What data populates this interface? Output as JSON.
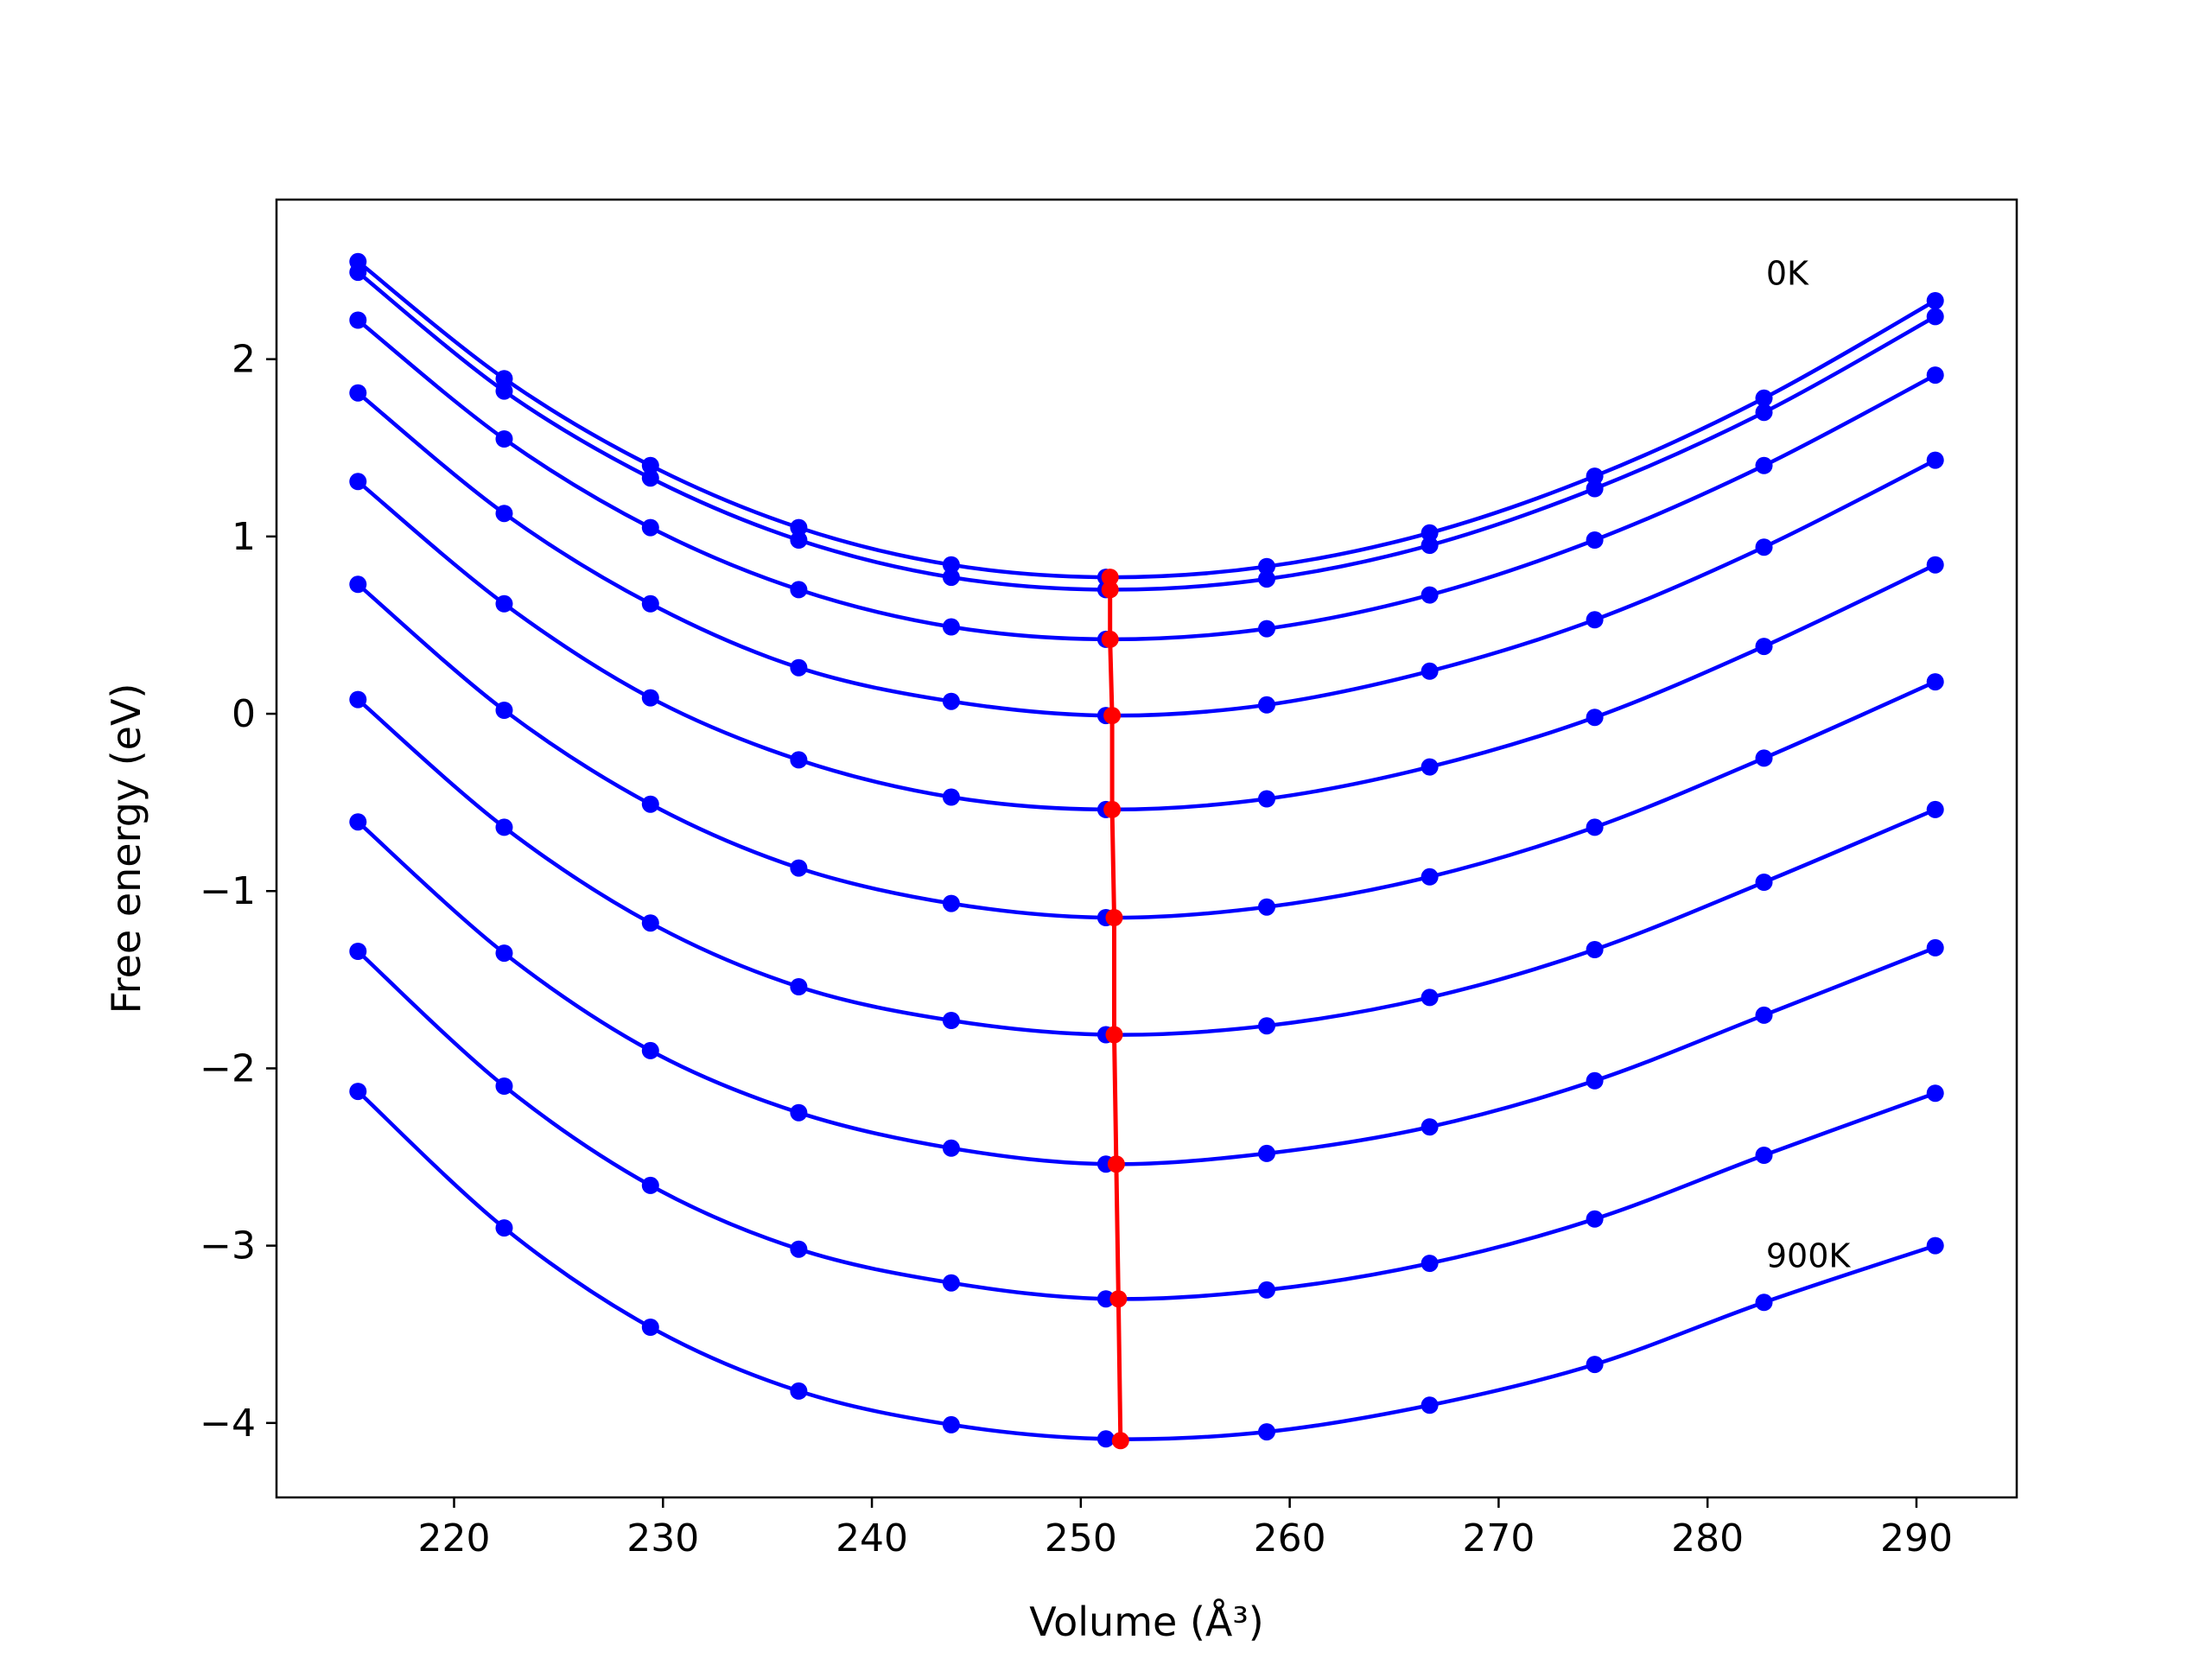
{
  "chart_data": {
    "type": "line",
    "xlabel": "Volume (Å³)",
    "ylabel": "Free energy (eV)",
    "xlim": [
      211.5,
      294.8
    ],
    "ylim": [
      -4.42,
      2.9
    ],
    "xticks": [
      220,
      230,
      240,
      250,
      260,
      270,
      280,
      290
    ],
    "yticks": [
      -4,
      -3,
      -2,
      -1,
      0,
      1,
      2
    ],
    "xtick_labels": [
      "220",
      "230",
      "240",
      "250",
      "260",
      "270",
      "280",
      "290"
    ],
    "ytick_labels": [
      "−4",
      "−3",
      "−2",
      "−1",
      "0",
      "1",
      "2"
    ],
    "grid": false,
    "annotations": [
      {
        "text": "0K",
        "x": 282.8,
        "y": 2.42
      },
      {
        "text": "900K",
        "x": 282.8,
        "y": -3.12
      }
    ],
    "x": [
      215.4,
      222.4,
      229.4,
      236.5,
      243.8,
      251.2,
      258.9,
      266.7,
      274.6,
      282.7,
      290.9
    ],
    "series": [
      {
        "values": [
          2.55,
          1.89,
          1.4,
          1.05,
          0.84,
          0.77,
          0.83,
          1.02,
          1.34,
          1.78,
          2.33
        ]
      },
      {
        "values": [
          2.49,
          1.82,
          1.33,
          0.98,
          0.77,
          0.7,
          0.76,
          0.95,
          1.27,
          1.7,
          2.24
        ]
      },
      {
        "values": [
          2.22,
          1.55,
          1.05,
          0.7,
          0.49,
          0.42,
          0.48,
          0.67,
          0.98,
          1.4,
          1.91
        ]
      },
      {
        "values": [
          1.81,
          1.13,
          0.62,
          0.26,
          0.07,
          -0.01,
          0.05,
          0.24,
          0.53,
          0.94,
          1.43
        ]
      },
      {
        "values": [
          1.31,
          0.62,
          0.09,
          -0.26,
          -0.47,
          -0.54,
          -0.48,
          -0.3,
          -0.02,
          0.38,
          0.84
        ]
      },
      {
        "values": [
          0.73,
          0.02,
          -0.51,
          -0.87,
          -1.07,
          -1.15,
          -1.09,
          -0.92,
          -0.64,
          -0.25,
          0.18
        ]
      },
      {
        "values": [
          0.08,
          -0.64,
          -1.18,
          -1.54,
          -1.73,
          -1.81,
          -1.76,
          -1.6,
          -1.33,
          -0.95,
          -0.54
        ]
      },
      {
        "values": [
          -0.61,
          -1.35,
          -1.9,
          -2.25,
          -2.45,
          -2.54,
          -2.48,
          -2.33,
          -2.07,
          -1.7,
          -1.32
        ]
      },
      {
        "values": [
          -1.34,
          -2.1,
          -2.66,
          -3.02,
          -3.21,
          -3.3,
          -3.25,
          -3.1,
          -2.85,
          -2.49,
          -2.14
        ]
      },
      {
        "values": [
          -2.13,
          -2.9,
          -3.46,
          -3.82,
          -4.01,
          -4.09,
          -4.05,
          -3.9,
          -3.67,
          -3.32,
          -3.0
        ]
      }
    ],
    "minima": {
      "x": [
        251.4,
        251.4,
        251.4,
        251.5,
        251.5,
        251.6,
        251.6,
        251.7,
        251.8,
        251.9
      ],
      "y": [
        0.77,
        0.7,
        0.42,
        -0.01,
        -0.54,
        -1.15,
        -1.81,
        -2.54,
        -3.3,
        -4.1
      ]
    },
    "colors": {
      "curves": "#0000ff",
      "minima": "#ff0000"
    }
  }
}
